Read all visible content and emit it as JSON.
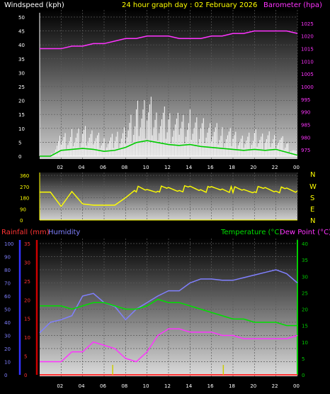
{
  "header": {
    "left": "Windspeed (kph)",
    "center": "24 hour graph day : 02 February 2026",
    "right": "Barometer (hpa)"
  },
  "colors": {
    "windspeed": "#ffffff",
    "wind_avg": "#00cc00",
    "barometer": "#ff33ff",
    "direction": "#ffff00",
    "humidity": "#8080ff",
    "temperature": "#00e000",
    "dewpoint": "#ff33ff",
    "rainfall": "#ff3333",
    "rain_rate": "#cccc00",
    "axis_left": "#3333ff",
    "axis_rain": "#cc0000",
    "axis_right_green": "#00cc00"
  },
  "panels": {
    "wind": {
      "left_ticks": [
        "50",
        "45",
        "40",
        "35",
        "30",
        "25",
        "20",
        "15",
        "10",
        "5",
        "0"
      ],
      "right_ticks": [
        "1025",
        "1020",
        "1015",
        "1010",
        "1005",
        "1000",
        "995",
        "990",
        "985",
        "980",
        "975"
      ]
    },
    "direction": {
      "left_ticks": [
        "360",
        "270",
        "180",
        "90",
        "0"
      ],
      "compass": [
        "N",
        "W",
        "S",
        "E",
        "N"
      ]
    },
    "weather": {
      "legend_rain": "Rainfall (mm)",
      "legend_hum": "Humidity",
      "legend_temp": "Temperature (°C)",
      "legend_dew": "Dew Point (°C)",
      "hum_ticks": [
        "100",
        "90",
        "80",
        "70",
        "60",
        "50",
        "40",
        "30",
        "20",
        "10",
        "0"
      ],
      "rain_ticks": [
        "35",
        "30",
        "25",
        "20",
        "15",
        "10",
        "5",
        "0"
      ],
      "temp_ticks": [
        "40",
        "35",
        "30",
        "25",
        "20",
        "15",
        "10",
        "5",
        "0"
      ]
    },
    "x_ticks": [
      "02",
      "04",
      "06",
      "08",
      "10",
      "12",
      "14",
      "16",
      "18",
      "20",
      "22",
      "00"
    ]
  },
  "chart_data": [
    {
      "type": "line",
      "title": "24 hour graph day : 02 February 2026",
      "ylabel": "Windspeed (kph)",
      "y2label": "Barometer (hpa)",
      "ylim": [
        0,
        50
      ],
      "y2lim": [
        972.5,
        1027.5
      ],
      "x": [
        0,
        1,
        2,
        3,
        4,
        5,
        6,
        7,
        8,
        9,
        10,
        11,
        12,
        13,
        14,
        15,
        16,
        17,
        18,
        19,
        20,
        21,
        22,
        23,
        24
      ],
      "series": [
        {
          "name": "Windspeed (kph)",
          "values": [
            0,
            0,
            6,
            7,
            8,
            7,
            5,
            6,
            9,
            14,
            16,
            14,
            12,
            11,
            12,
            10,
            9,
            8,
            7,
            6,
            7,
            6,
            7,
            4,
            1
          ]
        },
        {
          "name": "Barometer (hpa)",
          "values": [
            1015,
            1015,
            1015,
            1016,
            1016,
            1017,
            1017,
            1018,
            1019,
            1019,
            1020,
            1020,
            1020,
            1019,
            1019,
            1019,
            1020,
            1020,
            1021,
            1021,
            1022,
            1022,
            1022,
            1022,
            1021
          ]
        }
      ]
    },
    {
      "type": "line",
      "ylim": [
        0,
        360
      ],
      "x": [
        0,
        1,
        2,
        3,
        4,
        5,
        6,
        7,
        8,
        9,
        10,
        11,
        12,
        13,
        14,
        15,
        16,
        17,
        18,
        19,
        20,
        21,
        22,
        23,
        24
      ],
      "series": [
        {
          "values": [
            225,
            225,
            110,
            230,
            130,
            120,
            120,
            120,
            180,
            250,
            240,
            250,
            250,
            250,
            255,
            250,
            245,
            250,
            245,
            240,
            245,
            250,
            245,
            240,
            235
          ]
        }
      ]
    },
    {
      "type": "line",
      "x": [
        0,
        1,
        2,
        3,
        4,
        5,
        6,
        7,
        8,
        9,
        10,
        11,
        12,
        13,
        14,
        15,
        16,
        17,
        18,
        19,
        20,
        21,
        22,
        23,
        24
      ],
      "series": [
        {
          "name": "Humidity",
          "ylim": [
            0,
            100
          ],
          "values": [
            32,
            40,
            42,
            45,
            60,
            62,
            55,
            52,
            42,
            50,
            55,
            60,
            64,
            64,
            70,
            73,
            73,
            72,
            72,
            74,
            76,
            78,
            80,
            77,
            70
          ]
        },
        {
          "name": "Temperature (°C)",
          "ylim": [
            0,
            40
          ],
          "values": [
            21,
            21,
            21,
            20,
            21,
            22,
            22,
            21,
            20,
            20,
            21,
            23,
            22,
            22,
            21,
            20,
            19,
            18,
            17,
            17,
            16,
            16,
            16,
            15,
            15
          ]
        },
        {
          "name": "Dew Point (°C)",
          "ylim": [
            0,
            40
          ],
          "values": [
            4,
            4,
            4,
            7,
            7,
            10,
            9,
            8,
            5,
            4,
            7,
            12,
            14,
            14,
            13,
            13,
            13,
            12,
            12,
            11,
            11,
            11,
            11,
            11,
            12
          ]
        },
        {
          "name": "Rainfall (mm)",
          "ylim": [
            0,
            35
          ],
          "values": [
            0,
            0,
            0,
            0,
            0,
            0,
            0,
            0,
            0,
            0,
            0,
            0,
            0,
            0,
            0,
            0,
            0,
            0,
            0,
            0,
            0,
            0,
            0,
            0,
            0
          ]
        }
      ]
    }
  ]
}
